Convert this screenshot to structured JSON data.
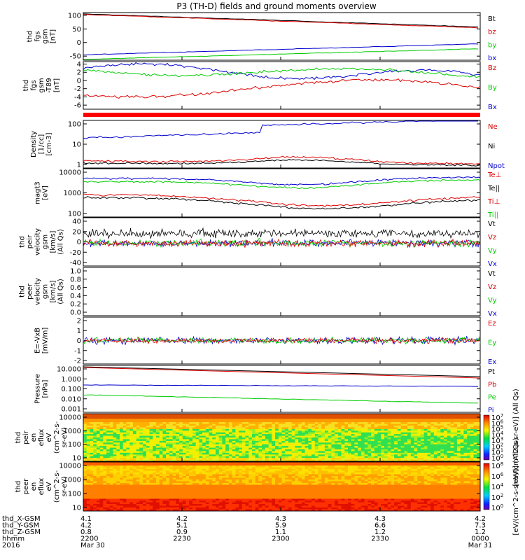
{
  "title": "P3 (TH-D) fields and ground moments overview",
  "panels": [
    {
      "id": "fgs-mag",
      "ylabel": [
        "thd",
        "fgs",
        "gsm",
        "[nT]"
      ],
      "yticks": [
        "100",
        "50",
        "0",
        "-50"
      ],
      "ylim": [
        -65,
        110
      ],
      "legend": [
        {
          "label": "Bt",
          "color": "#000000"
        },
        {
          "label": "bz",
          "color": "#dd0000"
        },
        {
          "label": "by",
          "color": "#00cc00"
        },
        {
          "label": "bx",
          "color": "#0000cc"
        }
      ],
      "lines": [
        {
          "color": "#000000",
          "start": 105,
          "end": 57
        },
        {
          "color": "#dd0000",
          "start": 103,
          "end": 54
        },
        {
          "color": "#00cc00",
          "start": -62,
          "end": -23
        },
        {
          "color": "#0000cc",
          "start": -45,
          "end": -5
        }
      ]
    },
    {
      "id": "fgs-gsm-detrend",
      "ylabel": [
        "thd",
        "fgs",
        "gsm",
        "-T89",
        "[nT]"
      ],
      "yticks": [
        "4",
        "2",
        "0",
        "-2",
        "-4",
        "-6"
      ],
      "ylim": [
        -7,
        4.6
      ],
      "legend": [
        {
          "label": "Bz",
          "color": "#dd0000"
        },
        {
          "label": "By",
          "color": "#00cc00"
        },
        {
          "label": "Bx",
          "color": "#0000cc"
        }
      ]
    },
    {
      "id": "density",
      "ylabel": [
        "Density",
        "[1/cc]",
        "[cm-3]"
      ],
      "yticks": [
        "100",
        "10",
        "1"
      ],
      "log": true,
      "legend": [
        {
          "label": "Ne",
          "color": "#dd0000"
        },
        {
          "label": "Ni",
          "color": "#000000"
        },
        {
          "label": "Npot",
          "color": "#0000cc"
        }
      ]
    },
    {
      "id": "temperature",
      "ylabel": [
        "magt3",
        "[eV]"
      ],
      "yticks": [
        "10000",
        "1000",
        "100"
      ],
      "log": true,
      "legend": [
        {
          "label": "Te⊥",
          "color": "#dd0000"
        },
        {
          "label": "Te||",
          "color": "#000000"
        },
        {
          "label": "Ti⊥",
          "color": "#dd0000"
        },
        {
          "label": "Ti||",
          "color": "#00cc00"
        }
      ]
    },
    {
      "id": "peir-velocity",
      "ylabel": [
        "thd",
        "peir",
        "velocity",
        "gsm",
        "[km/s]",
        "(All Qs)"
      ],
      "yticks": [
        "40",
        "20",
        "0",
        "-20",
        "-40"
      ],
      "legend": [
        {
          "label": "Vt",
          "color": "#000000"
        },
        {
          "label": "Vz",
          "color": "#dd0000"
        },
        {
          "label": "Vy",
          "color": "#00cc00"
        },
        {
          "label": "Vx",
          "color": "#0000cc"
        }
      ]
    },
    {
      "id": "peer-velocity",
      "ylabel": [
        "thd",
        "peer",
        "velocity",
        "gsm",
        "[km/s]",
        "(All Qs)"
      ],
      "yticks": [
        "1.0",
        "0.8",
        "0.6",
        "0.4",
        "0.2",
        "0.0"
      ],
      "legend": [
        {
          "label": "Vt",
          "color": "#000000"
        },
        {
          "label": "Vz",
          "color": "#dd0000"
        },
        {
          "label": "Vy",
          "color": "#00cc00"
        },
        {
          "label": "Vx",
          "color": "#0000cc"
        }
      ]
    },
    {
      "id": "efield",
      "ylabel": [
        "E=-VxB",
        "[mV/m]"
      ],
      "yticks": [
        "2",
        "1",
        "0",
        "-1",
        "-2"
      ],
      "legend": [
        {
          "label": "Ez",
          "color": "#dd0000"
        },
        {
          "label": "Ey",
          "color": "#00cc00"
        },
        {
          "label": "Ex",
          "color": "#0000cc"
        }
      ]
    },
    {
      "id": "pressure",
      "ylabel": [
        "Pressure",
        "[nPa]"
      ],
      "yticks": [
        "10.000",
        "1.000",
        "0.100",
        "0.010",
        "0.001"
      ],
      "log": true,
      "legend": [
        {
          "label": "Pt",
          "color": "#000000"
        },
        {
          "label": "Pb",
          "color": "#dd0000"
        },
        {
          "label": "Pe",
          "color": "#00cc00"
        },
        {
          "label": "Pi",
          "color": "#0000cc"
        }
      ]
    },
    {
      "id": "peir-eflux",
      "ylabel": [
        "thd",
        "peir",
        "en",
        "eflux",
        "eV",
        "(cm^2-s-",
        "sr-eV)"
      ],
      "yticks": [
        "10000",
        "1000",
        "100",
        "10"
      ],
      "spectrogram": "ion",
      "colorbar": {
        "ticks": [
          "10^7",
          "10^6",
          "10^5",
          "10^4",
          "10^3",
          "10^2",
          "10^1",
          "10^0"
        ],
        "label": "[eV/(cm^2-s-sr-eV)] (All Qs)"
      }
    },
    {
      "id": "peer-eflux",
      "ylabel": [
        "thd",
        "peer",
        "en",
        "eflux",
        "eV",
        "(cm^2-s-",
        "sr-eV)"
      ],
      "yticks": [
        "10000",
        "1000",
        "100",
        "10"
      ],
      "spectrogram": "electron",
      "colorbar": {
        "ticks": [
          "10^8",
          "10^6",
          "10^4",
          "10^2",
          "10^0"
        ],
        "label": "[eV/(cm^2-s-sr-eV)] (All Qs)"
      }
    }
  ],
  "x_axis": {
    "rows": [
      {
        "label": "thd_X-GSM",
        "values": [
          "4.1",
          "4.2",
          "4.3",
          "4.3",
          "4.2"
        ]
      },
      {
        "label": "thd_Y-GSM",
        "values": [
          "4.2",
          "5.1",
          "5.9",
          "6.6",
          "7.3"
        ]
      },
      {
        "label": "thd_Z-GSM",
        "values": [
          "0.8",
          "0.9",
          "1.1",
          "1.2",
          "1.2"
        ]
      },
      {
        "label": "hhmm",
        "values": [
          "2200",
          "2230",
          "2300",
          "2330",
          "0000"
        ]
      },
      {
        "label": "2016",
        "values": [
          "Mar 30",
          "",
          "",
          "",
          "Mar 31"
        ]
      }
    ]
  },
  "chart_data": {
    "type": "line",
    "title": "P3 (TH-D) fields and ground moments overview",
    "x": [
      "2200",
      "2230",
      "2300",
      "2330",
      "0000"
    ],
    "xlabel": "hhmm",
    "series": [
      {
        "name": "Bt",
        "values": [
          105,
          93,
          81,
          69,
          57
        ]
      },
      {
        "name": "bz",
        "values": [
          103,
          91,
          79,
          66,
          54
        ]
      },
      {
        "name": "by",
        "values": [
          -62,
          -52,
          -42,
          -33,
          -23
        ]
      },
      {
        "name": "bx",
        "values": [
          -45,
          -35,
          -25,
          -15,
          -5
        ]
      }
    ],
    "ylabel": "thd fgs gsm [nT]",
    "ylim": [
      -65,
      110
    ]
  }
}
